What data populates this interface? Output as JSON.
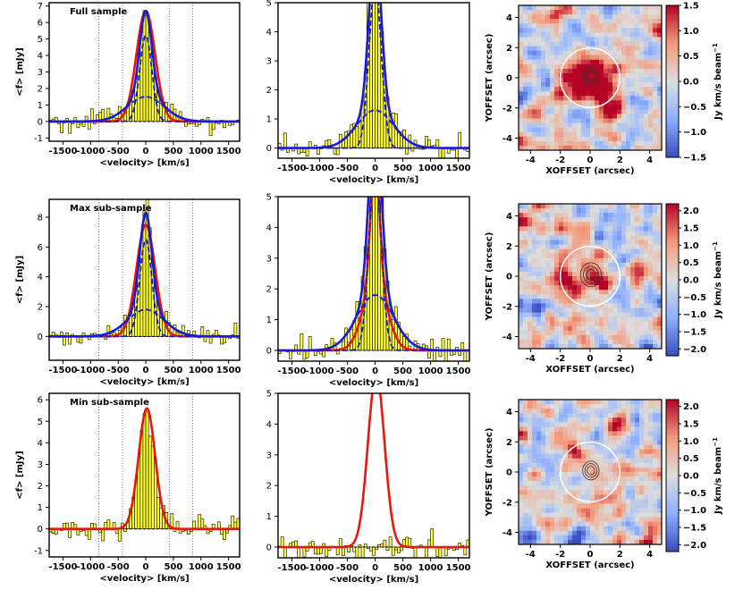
{
  "figure": {
    "spectrum_panels": [
      {
        "title": "Full sample",
        "ylabel": "<f> [mJy]",
        "xlabel": "<velocity> [km/s]",
        "xlim": [
          -1750,
          1700
        ],
        "ylim": [
          -1.2,
          7.2
        ],
        "yticks": [
          -1,
          0,
          1,
          2,
          3,
          4,
          5,
          6,
          7
        ],
        "xticks": [
          -1500,
          -1000,
          -500,
          0,
          500,
          1000,
          1500
        ],
        "xtick_labels": [
          "-1500",
          "-1000",
          "-500",
          "0",
          "500",
          "1000",
          "1500"
        ],
        "vlines": [
          -850,
          -425,
          425,
          850
        ],
        "curves": [
          {
            "color": "#e8160c",
            "style": "solid",
            "components": [
              {
                "amp": 6.7,
                "mu": 0,
                "sigma": 170
              }
            ]
          },
          {
            "color": "#1a1ad6",
            "style": "solid",
            "components": [
              {
                "amp": 5.2,
                "mu": 0,
                "sigma": 110
              },
              {
                "amp": 1.5,
                "mu": 0,
                "sigma": 330
              }
            ]
          },
          {
            "color": "#1a1ad6",
            "style": "dashed",
            "components": [
              {
                "amp": 5.2,
                "mu": 0,
                "sigma": 110
              }
            ]
          },
          {
            "color": "#1a1ad6",
            "style": "dashed",
            "components": [
              {
                "amp": 1.5,
                "mu": 0,
                "sigma": 330
              }
            ]
          }
        ]
      },
      {
        "title": "",
        "ylabel": "",
        "xlabel": "<velocity> [km/s]",
        "xlim": [
          -1750,
          1700
        ],
        "ylim": [
          -0.35,
          5.0
        ],
        "yticks": [
          0,
          1,
          2,
          3,
          4,
          5
        ],
        "xticks": [
          -1500,
          -1000,
          -500,
          0,
          500,
          1000,
          1500
        ],
        "xtick_labels": [
          "-1500",
          "-1000",
          "-500",
          "0",
          "500",
          "1000",
          "1500"
        ],
        "vlines": [],
        "curves": [
          {
            "color": "#1a1ad6",
            "style": "solid",
            "components": [
              {
                "amp": 5.6,
                "mu": 0,
                "sigma": 110
              },
              {
                "amp": 1.3,
                "mu": 0,
                "sigma": 330
              }
            ]
          },
          {
            "color": "#1a1ad6",
            "style": "dashed",
            "components": [
              {
                "amp": 5.6,
                "mu": 0,
                "sigma": 110
              }
            ]
          },
          {
            "color": "#1a1ad6",
            "style": "dashed",
            "components": [
              {
                "amp": 1.3,
                "mu": 0,
                "sigma": 330
              }
            ]
          }
        ]
      },
      {
        "title": "Max sub-sample",
        "ylabel": "<f> [mJy]",
        "xlabel": "<velocity> [km/s]",
        "xlim": [
          -1750,
          1700
        ],
        "ylim": [
          -1.6,
          9.2
        ],
        "yticks": [
          0,
          2,
          4,
          6,
          8
        ],
        "xticks": [
          -1500,
          -1000,
          -500,
          0,
          500,
          1000,
          1500
        ],
        "xtick_labels": [
          "-1500",
          "-1000",
          "-500",
          "0",
          "500",
          "1000",
          "1500"
        ],
        "vlines": [
          -850,
          -425,
          425,
          850
        ],
        "curves": [
          {
            "color": "#e8160c",
            "style": "solid",
            "components": [
              {
                "amp": 7.5,
                "mu": 0,
                "sigma": 170
              }
            ]
          },
          {
            "color": "#1a1ad6",
            "style": "solid",
            "components": [
              {
                "amp": 6.5,
                "mu": 0,
                "sigma": 110
              },
              {
                "amp": 1.8,
                "mu": 0,
                "sigma": 330
              }
            ]
          },
          {
            "color": "#1a1ad6",
            "style": "dashed",
            "components": [
              {
                "amp": 6.5,
                "mu": 0,
                "sigma": 110
              }
            ]
          },
          {
            "color": "#1a1ad6",
            "style": "dashed",
            "components": [
              {
                "amp": 1.8,
                "mu": 0,
                "sigma": 330
              }
            ]
          }
        ]
      },
      {
        "title": "",
        "ylabel": "",
        "xlabel": "<velocity> [km/s]",
        "xlim": [
          -1750,
          1700
        ],
        "ylim": [
          -0.35,
          5.0
        ],
        "yticks": [
          0,
          1,
          2,
          3,
          4,
          5
        ],
        "xticks": [
          -1500,
          -1000,
          -500,
          0,
          500,
          1000,
          1500
        ],
        "xtick_labels": [
          "-1500",
          "-1000",
          "-500",
          "0",
          "500",
          "1000",
          "1500"
        ],
        "vlines": [],
        "curves": [
          {
            "color": "#e8160c",
            "style": "solid",
            "components": [
              {
                "amp": 1.2,
                "mu": -60,
                "sigma": 200
              },
              {
                "amp": 1.2,
                "mu": 60,
                "sigma": 200
              },
              {
                "amp": 3.9,
                "mu": 0,
                "sigma": 80
              }
            ]
          },
          {
            "color": "#1a1ad6",
            "style": "solid",
            "components": [
              {
                "amp": 6.0,
                "mu": 0,
                "sigma": 110
              },
              {
                "amp": 1.8,
                "mu": 0,
                "sigma": 330
              }
            ]
          },
          {
            "color": "#1a1ad6",
            "style": "dashed",
            "components": [
              {
                "amp": 6.0,
                "mu": 0,
                "sigma": 110
              }
            ]
          },
          {
            "color": "#1a1ad6",
            "style": "dashed",
            "components": [
              {
                "amp": 1.8,
                "mu": 0,
                "sigma": 330
              }
            ]
          }
        ]
      },
      {
        "title": "Min sub-sample",
        "ylabel": "<f> [mJy]",
        "xlabel": "<velocity> [km/s]",
        "xlim": [
          -1750,
          1700
        ],
        "ylim": [
          -1.3,
          6.3
        ],
        "yticks": [
          -1,
          0,
          1,
          2,
          3,
          4,
          5,
          6
        ],
        "xticks": [
          -1500,
          -1000,
          -500,
          0,
          500,
          1000,
          1500
        ],
        "xtick_labels": [
          "-1500",
          "-1000",
          "-500",
          "0",
          "500",
          "1000",
          "1500"
        ],
        "vlines": [
          -850,
          -425,
          425,
          850
        ],
        "curves": [
          {
            "color": "#e8160c",
            "style": "solid",
            "components": [
              {
                "amp": 5.6,
                "mu": 20,
                "sigma": 150
              }
            ]
          }
        ]
      },
      {
        "title": "",
        "ylabel": "",
        "xlabel": "<velocity> [km/s]",
        "xlim": [
          -1750,
          1700
        ],
        "ylim": [
          -0.35,
          5.0
        ],
        "yticks": [
          0,
          1,
          2,
          3,
          4,
          5
        ],
        "xticks": [
          -1500,
          -1000,
          -500,
          0,
          500,
          1000,
          1500
        ],
        "xtick_labels": [
          "-1500",
          "-1000",
          "-500",
          "0",
          "500",
          "1000",
          "1500"
        ],
        "vlines": [],
        "curves": [
          {
            "color": "#e8160c",
            "style": "solid",
            "components": [
              {
                "amp": 5.6,
                "mu": 20,
                "sigma": 150
              }
            ]
          }
        ]
      }
    ],
    "map_panels": [
      {
        "xlabel": "XOFFSET (arcsec)",
        "ylabel": "YOFFSET (arcsec)",
        "cbar_label": "Jy km/s beam",
        "cbar_exponent": "−1",
        "lim": [
          -4.8,
          4.8
        ],
        "ticks": [
          -4,
          -2,
          0,
          2,
          4
        ],
        "vlim": [
          -1.5,
          1.5
        ],
        "cbar_ticks": [
          -1.5,
          -1.0,
          -0.5,
          0.0,
          0.5,
          1.0,
          1.5
        ],
        "cbar_tick_labels": [
          "−1.5",
          "−1.0",
          "−0.5",
          "0.0",
          "0.5",
          "1.0",
          "1.5"
        ],
        "circle_radius": 2.0,
        "contours": [
          0.25,
          0.4,
          0.55
        ],
        "hot_spots": [
          [
            -1.0,
            0.3,
            1.3,
            0.9
          ],
          [
            -0.7,
            -0.9,
            1.3,
            0.8
          ],
          [
            0.5,
            0.6,
            1.4,
            0.8
          ],
          [
            0.9,
            -1.0,
            1.0,
            0.6
          ],
          [
            1.4,
            -2.2,
            1.0,
            0.6
          ]
        ]
      },
      {
        "xlabel": "XOFFSET (arcsec)",
        "ylabel": "YOFFSET (arcsec)",
        "cbar_label": "Jy km/s beam",
        "cbar_exponent": "−1",
        "lim": [
          -4.8,
          4.8
        ],
        "ticks": [
          -4,
          -2,
          0,
          2,
          4
        ],
        "vlim": [
          -2.2,
          2.2
        ],
        "cbar_ticks": [
          -2.0,
          -1.5,
          -1.0,
          -0.5,
          0.0,
          0.5,
          1.0,
          1.5,
          2.0
        ],
        "cbar_tick_labels": [
          "−2.0",
          "−1.5",
          "−1.0",
          "−0.5",
          "0.0",
          "0.5",
          "1.0",
          "1.5",
          "2.0"
        ],
        "circle_radius": 2.0,
        "contours": [
          0.3,
          0.5,
          0.7
        ],
        "hot_spots": [
          [
            -1.4,
            -0.9,
            1.6,
            0.8
          ],
          [
            0.3,
            0.4,
            1.6,
            0.8
          ],
          [
            -2.4,
            0.3,
            1.2,
            0.6
          ],
          [
            1.0,
            -0.6,
            1.1,
            0.6
          ]
        ]
      },
      {
        "xlabel": "XOFFSET (arcsec)",
        "ylabel": "YOFFSET (arcsec)",
        "cbar_label": "Jy km/s beam",
        "cbar_exponent": "−1",
        "lim": [
          -4.8,
          4.8
        ],
        "ticks": [
          -4,
          -2,
          0,
          2,
          4
        ],
        "vlim": [
          -2.2,
          2.2
        ],
        "cbar_ticks": [
          -2.0,
          -1.5,
          -1.0,
          -0.5,
          0.0,
          0.5,
          1.0,
          1.5,
          2.0
        ],
        "cbar_tick_labels": [
          "−2.0",
          "−1.5",
          "−1.0",
          "−0.5",
          "0.0",
          "0.5",
          "1.0",
          "1.5",
          "2.0"
        ],
        "circle_radius": 2.0,
        "contours": [
          0.25,
          0.4,
          0.55
        ],
        "hot_spots": [
          [
            1.8,
            2.5,
            1.0,
            0.6
          ],
          [
            -1.2,
            0.8,
            0.9,
            0.6
          ],
          [
            0.8,
            -1.5,
            1.0,
            0.6
          ]
        ]
      }
    ]
  }
}
